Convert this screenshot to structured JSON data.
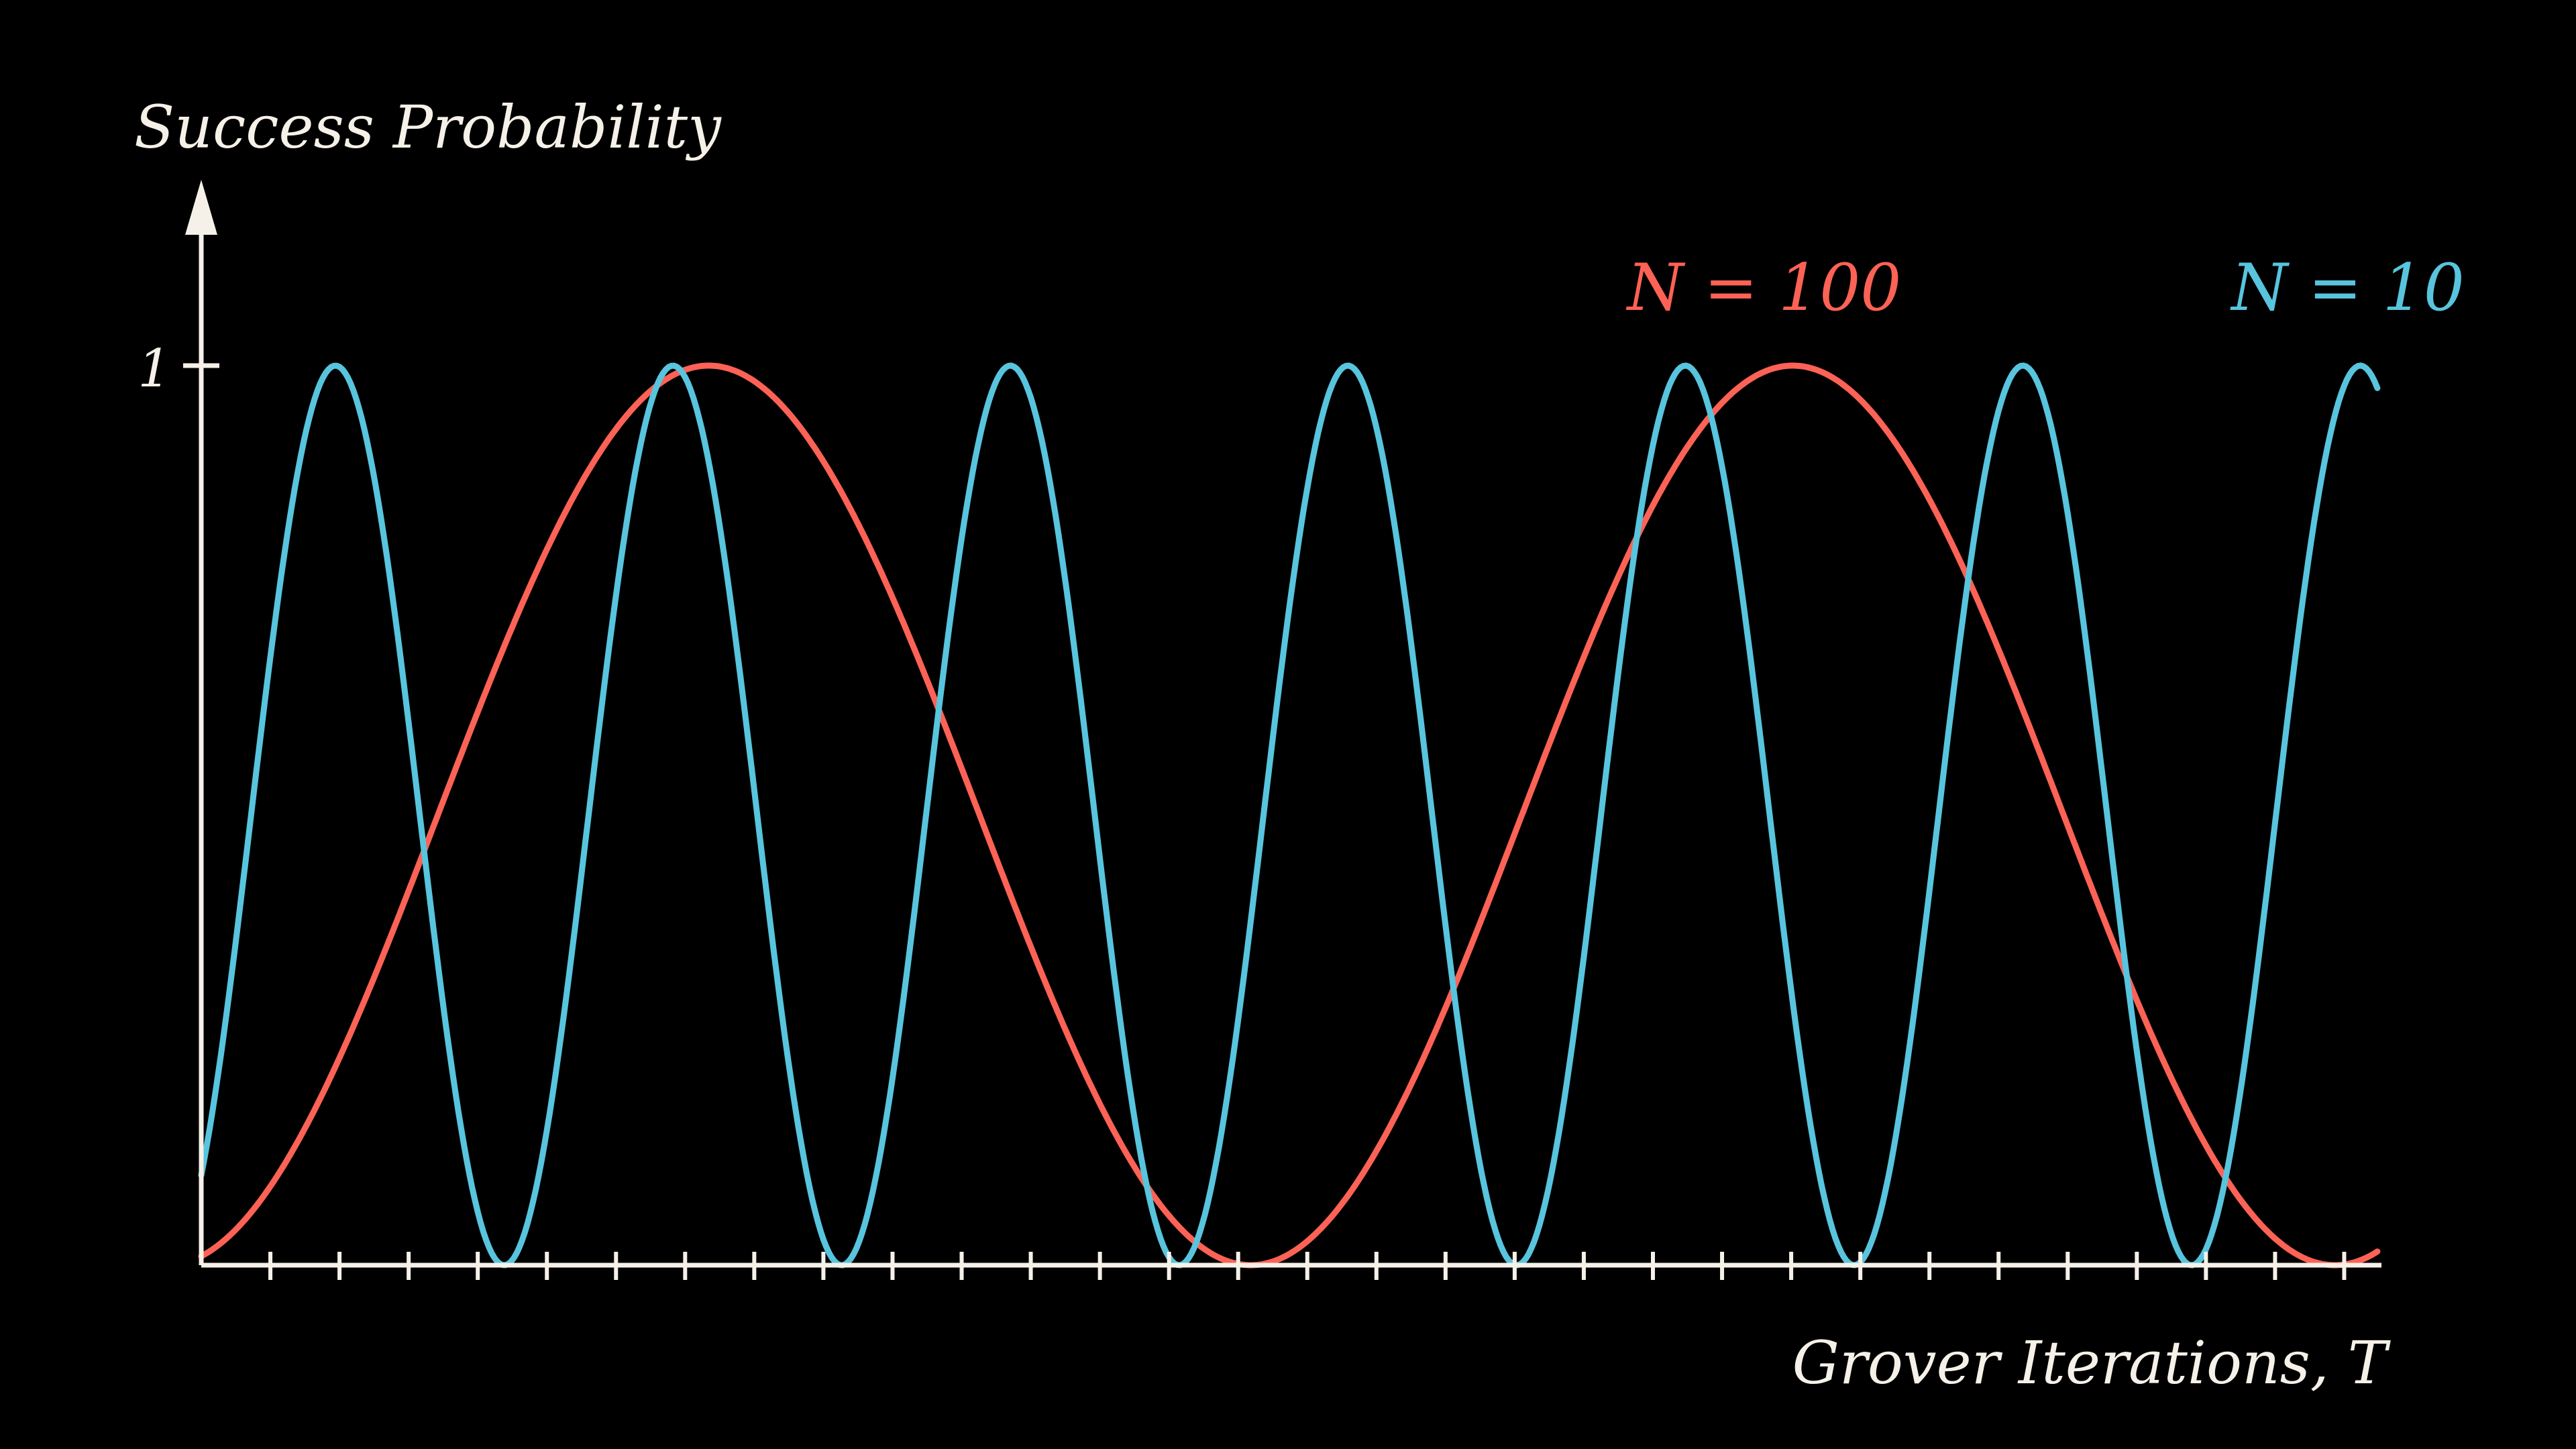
{
  "chart": {
    "ylabel": "Success Probability",
    "xlabel": "Grover Iterations, T",
    "y_tick_label": "1",
    "background_color": "#000000",
    "axis_color": "#f6f1e8"
  },
  "chart_data": {
    "type": "line",
    "title": "",
    "xlabel": "Grover Iterations, T",
    "ylabel": "Success Probability",
    "x_range": [
      0,
      31.5
    ],
    "y_range": [
      0,
      1
    ],
    "y_ticks": [
      1
    ],
    "x_ticks_every": 1,
    "grid": false,
    "legend_position": "top-right-inline",
    "formula": "P(T) = sin^2((2T+1) * arcsin(1/sqrt(N)))",
    "series": [
      {
        "name": "N = 100",
        "N": 100,
        "color": "#fc6255",
        "theta_rad": 0.1002,
        "period_iterations": 15.68,
        "p_at_T0": 0.01,
        "peak_T": [
          7.34,
          23.02
        ],
        "zero_T": [
          15.18,
          30.86
        ]
      },
      {
        "name": "N = 10",
        "N": 10,
        "color": "#58c4dd",
        "theta_rad": 0.3217,
        "period_iterations": 4.88,
        "p_at_T0": 0.1,
        "peak_T": [
          1.94,
          6.83,
          11.71,
          16.59,
          21.47,
          26.35,
          31.24
        ],
        "zero_T": [
          4.38,
          9.27,
          14.15,
          19.03,
          23.91,
          28.79
        ]
      }
    ]
  }
}
